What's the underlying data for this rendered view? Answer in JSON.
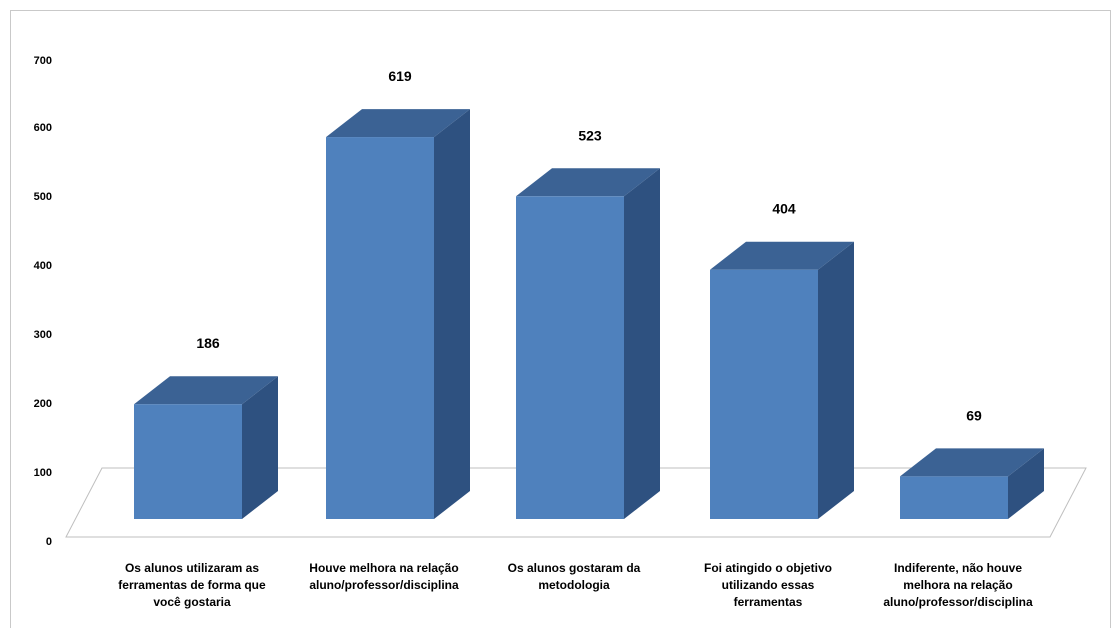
{
  "chart_data": {
    "type": "bar",
    "style": "3d-column",
    "title": "",
    "xlabel": "",
    "ylabel": "",
    "ylim": [
      0,
      700
    ],
    "yticks": [
      0,
      100,
      200,
      300,
      400,
      500,
      600,
      700
    ],
    "grid": false,
    "legend": "none",
    "bar_color": "#4F81BD",
    "bar_top_color": "#3B6294",
    "bar_side_color": "#2E5180",
    "categories": [
      [
        "Os alunos utilizaram as",
        "ferramentas de forma que",
        "você gostaria"
      ],
      [
        "Houve melhora na relação",
        "aluno/professor/disciplina"
      ],
      [
        "Os alunos gostaram da",
        "metodologia"
      ],
      [
        "Foi atingido o objetivo",
        "utilizando essas",
        "ferramentas"
      ],
      [
        "Indiferente, não houve",
        "melhora na relação",
        "aluno/professor/disciplina"
      ]
    ],
    "values": [
      186,
      619,
      523,
      404,
      69
    ]
  }
}
